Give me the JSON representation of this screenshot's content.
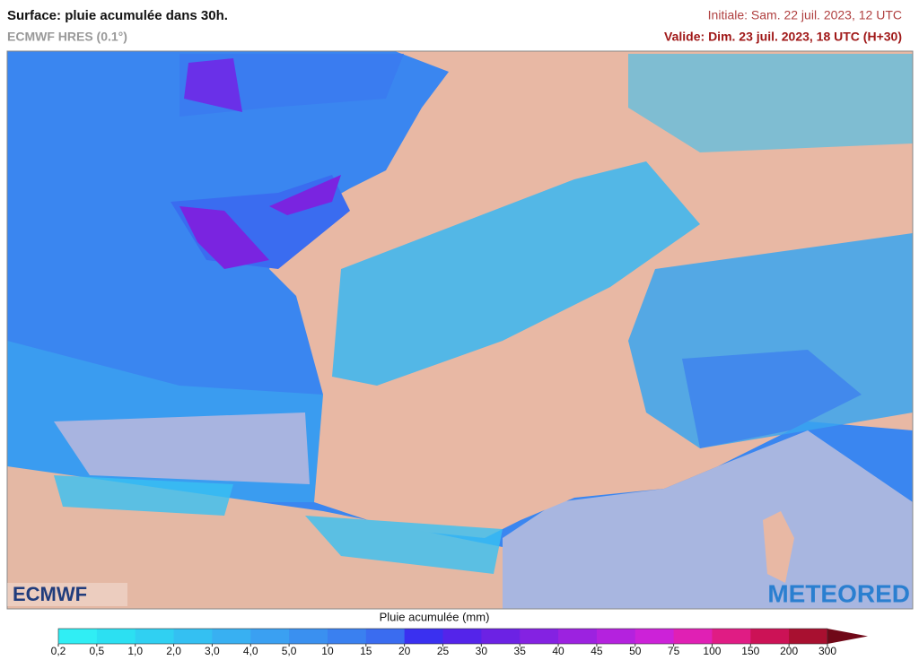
{
  "header": {
    "title": "Surface: pluie acumulée dans 30h.",
    "model": "ECMWF HRES (0.1°)",
    "initial": "Initiale: Sam. 22 juil. 2023, 12 UTC",
    "valid": "Valide: Dim. 23 juil. 2023, 18 UTC (H+30)"
  },
  "logos": {
    "left": "ECMWF",
    "right": "METEORED"
  },
  "legend": {
    "title": "Pluie acumulée (mm)",
    "labels": [
      "0,2",
      "0,5",
      "1,0",
      "2,0",
      "3,0",
      "4,0",
      "5,0",
      "10",
      "15",
      "20",
      "25",
      "30",
      "35",
      "40",
      "45",
      "50",
      "75",
      "100",
      "150",
      "200",
      "300"
    ],
    "colors": [
      "#30eef4",
      "#2ce0f2",
      "#30d0f2",
      "#34c0f2",
      "#38b0f2",
      "#3aa0f2",
      "#3a90f0",
      "#3a80f0",
      "#3a6cf0",
      "#3a30f0",
      "#5424ea",
      "#6c22e4",
      "#8422e2",
      "#9c22e0",
      "#b422de",
      "#cc22d8",
      "#e020b4",
      "#e01c84",
      "#cc1256",
      "#a81030",
      "#700818"
    ]
  }
}
